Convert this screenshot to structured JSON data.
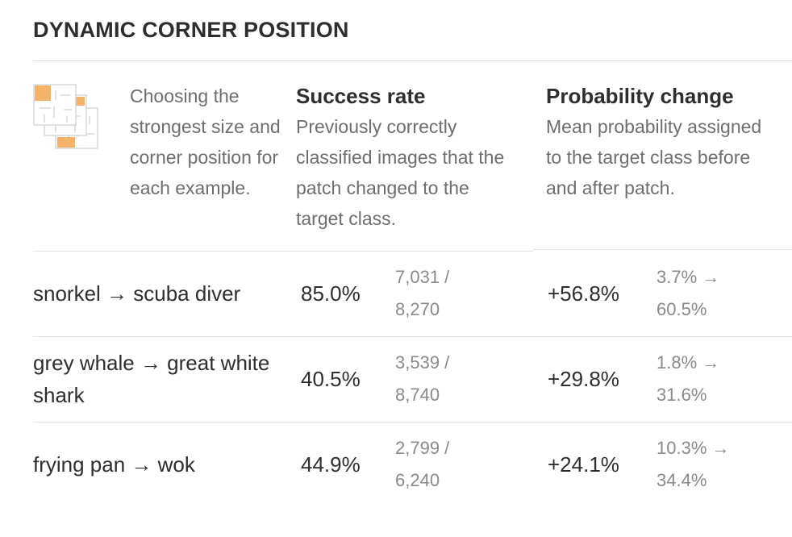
{
  "title": "DYNAMIC CORNER POSITION",
  "header": {
    "icon": "corner-patch-grid-icon",
    "description": "Choosing the strongest size and corner position for each example.",
    "success": {
      "heading": "Success rate",
      "subtitle": "Previously correctly classified images that the patch changed to the target class."
    },
    "probability": {
      "heading": "Probability change",
      "subtitle": "Mean probability assigned to the target class before and after patch."
    }
  },
  "rows": [
    {
      "label": "snorkel → scuba diver",
      "rate": "85.0%",
      "count": "7,031 / 8,270",
      "delta": "+56.8%",
      "probs": "3.7% → 60.5%"
    },
    {
      "label": "grey whale → great white shark",
      "rate": "40.5%",
      "count": "3,539 / 8,740",
      "delta": "+29.8%",
      "probs": "1.8% → 31.6%"
    },
    {
      "label": "frying pan → wok",
      "rate": "44.9%",
      "count": "2,799 / 6,240",
      "delta": "+24.1%",
      "probs": "10.3% → 34.4%"
    }
  ],
  "colors": {
    "patch": "#f5b26b",
    "grid": "#cfcfcf",
    "text": "#2e2e2e",
    "muted": "#6e6e6e",
    "rule": "#e2e2e2"
  }
}
